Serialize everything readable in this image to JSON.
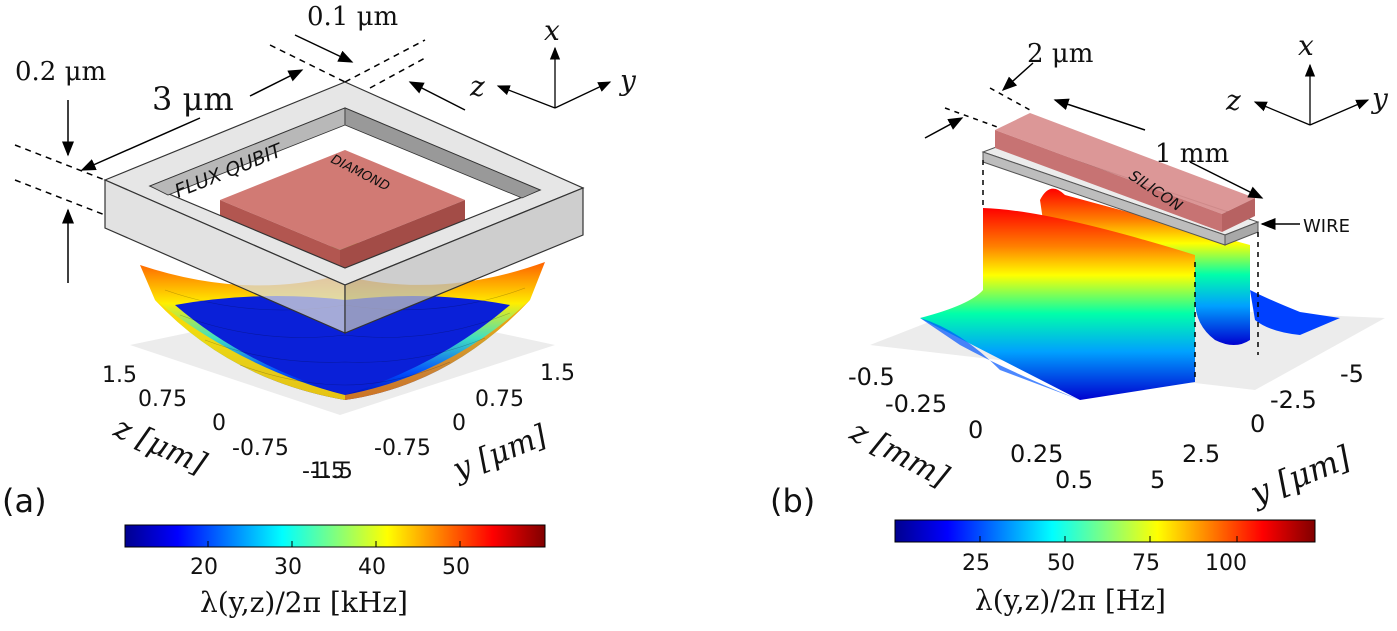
{
  "panel_a": {
    "label": "(a)",
    "dim_top": "0.1 μm",
    "dim_left": "0.2 μm",
    "dim_side": "3 μm",
    "ring_text": "FLUX QUBIT",
    "sample_text": "DIAMOND",
    "axes": {
      "x": "x",
      "y": "y",
      "z": "z"
    },
    "z_ticks": [
      "1.5",
      "0.75",
      "0",
      "-0.75",
      "-1.5"
    ],
    "y_ticks": [
      "-1.5",
      "-0.75",
      "0",
      "0.75",
      "1.5"
    ],
    "z_axis_label": "z [μm]",
    "y_axis_label": "y [μm]",
    "colorbar": {
      "ticks": [
        "20",
        "30",
        "40",
        "50"
      ],
      "label": "λ(y,z)/2π [kHz]"
    }
  },
  "panel_b": {
    "label": "(b)",
    "dim_width": "2 μm",
    "dim_length": "1 mm",
    "sample_text": "SILICON",
    "wire_text": "WIRE",
    "axes": {
      "x": "x",
      "y": "y",
      "z": "z"
    },
    "z_ticks": [
      "-0.5",
      "-0.25",
      "0",
      "0.25",
      "0.5"
    ],
    "y_ticks": [
      "5",
      "2.5",
      "0",
      "-2.5",
      "-5"
    ],
    "z_axis_label": "z [mm]",
    "y_axis_label": "y [μm]",
    "colorbar": {
      "ticks": [
        "25",
        "50",
        "75",
        "100"
      ],
      "label": "λ(y,z)/2π [Hz]"
    }
  },
  "colors": {
    "diamond": "#c96a66",
    "silicon": "#d98e8e",
    "frame": "#d4d4d4"
  }
}
